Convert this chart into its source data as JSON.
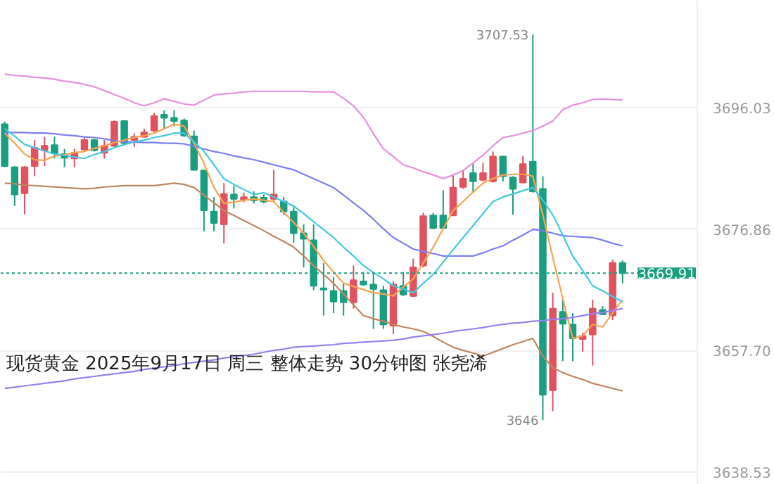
{
  "chart_data": {
    "type": "candlestick",
    "categories": [
      null,
      null,
      null,
      null,
      null,
      null,
      null,
      null,
      null,
      null,
      null,
      null,
      null,
      null,
      null,
      null,
      null,
      null,
      null,
      null,
      null,
      null,
      null,
      null,
      null,
      null,
      null,
      null,
      null,
      null,
      null,
      null,
      null,
      null,
      null,
      null,
      null,
      null,
      null,
      null,
      null,
      null,
      null,
      null,
      null,
      null,
      null,
      null,
      null,
      null,
      null,
      null,
      null,
      null,
      null,
      null,
      null,
      null,
      null,
      null,
      null,
      null,
      null
    ],
    "ohlc": [
      [
        3693.4,
        3693.8,
        3686.6,
        3686.8
      ],
      [
        3686.6,
        3686.8,
        3680.5,
        3682.3
      ],
      [
        3682.5,
        3686.8,
        3679.2,
        3686.6
      ],
      [
        3686.8,
        3690.9,
        3685.2,
        3689.7
      ],
      [
        3689.3,
        3691.4,
        3686.8,
        3690.0
      ],
      [
        3690.1,
        3691.4,
        3688.0,
        3688.8
      ],
      [
        3688.7,
        3689.5,
        3686.6,
        3688.1
      ],
      [
        3688.0,
        3689.5,
        3686.6,
        3688.9
      ],
      [
        3689.4,
        3691.3,
        3689.1,
        3690.9
      ],
      [
        3690.9,
        3691.1,
        3689.1,
        3689.3
      ],
      [
        3688.9,
        3690.9,
        3688.0,
        3690.0
      ],
      [
        3690.0,
        3694.0,
        3689.8,
        3693.8
      ],
      [
        3693.9,
        3694.0,
        3690.0,
        3690.4
      ],
      [
        3690.9,
        3692.0,
        3689.8,
        3691.4
      ],
      [
        3691.4,
        3692.7,
        3691.3,
        3692.1
      ],
      [
        3692.4,
        3695.2,
        3692.1,
        3694.7
      ],
      [
        3694.9,
        3695.6,
        3692.7,
        3694.4
      ],
      [
        3694.4,
        3695.6,
        3693.1,
        3693.9
      ],
      [
        3694.0,
        3694.3,
        3691.4,
        3691.6
      ],
      [
        3691.5,
        3692.4,
        3686.1,
        3686.2
      ],
      [
        3686.1,
        3686.2,
        3676.5,
        3679.8
      ],
      [
        3679.6,
        3681.9,
        3676.5,
        3677.8
      ],
      [
        3677.6,
        3684.1,
        3674.6,
        3682.4
      ],
      [
        3682.3,
        3683.7,
        3680.1,
        3681.6
      ],
      [
        3681.5,
        3682.6,
        3681.1,
        3681.9
      ],
      [
        3681.9,
        3682.8,
        3680.9,
        3681.4
      ],
      [
        3681.8,
        3682.3,
        3680.9,
        3681.2
      ],
      [
        3681.6,
        3686.2,
        3681.2,
        3682.3
      ],
      [
        3681.2,
        3681.9,
        3679.1,
        3679.6
      ],
      [
        3679.6,
        3680.5,
        3674.7,
        3676.2
      ],
      [
        3676.2,
        3677.6,
        3670.8,
        3675.3
      ],
      [
        3675.1,
        3677.6,
        3667.2,
        3667.9
      ],
      [
        3667.5,
        3671.5,
        3663.2,
        3667.3
      ],
      [
        3667.1,
        3669.3,
        3663.6,
        3665.4
      ],
      [
        3667.1,
        3668.3,
        3663.2,
        3665.3
      ],
      [
        3665.3,
        3671.1,
        3664.3,
        3668.8
      ],
      [
        3668.6,
        3670.1,
        3667.9,
        3668.1
      ],
      [
        3668.1,
        3670.1,
        3661.1,
        3667.4
      ],
      [
        3667.2,
        3667.9,
        3661.1,
        3661.8
      ],
      [
        3661.6,
        3668.6,
        3660.3,
        3668.1
      ],
      [
        3667.9,
        3670.1,
        3666.3,
        3666.5
      ],
      [
        3666.3,
        3672.2,
        3666.1,
        3670.8
      ],
      [
        3671.1,
        3679.4,
        3670.8,
        3678.9
      ],
      [
        3679.0,
        3679.4,
        3676.9,
        3677.0
      ],
      [
        3679.0,
        3683.0,
        3676.9,
        3677.0
      ],
      [
        3679.0,
        3685.5,
        3678.9,
        3683.4
      ],
      [
        3683.5,
        3686.2,
        3683.2,
        3684.8
      ],
      [
        3685.7,
        3687.3,
        3682.6,
        3684.4
      ],
      [
        3684.6,
        3687.3,
        3684.4,
        3685.7
      ],
      [
        3684.4,
        3689.1,
        3684.2,
        3688.3
      ],
      [
        3688.3,
        3688.4,
        3684.4,
        3685.2
      ],
      [
        3685.0,
        3685.2,
        3679.1,
        3683.2
      ],
      [
        3684.2,
        3688.4,
        3684.1,
        3687.1
      ],
      [
        3687.5,
        3707.53,
        3682.6,
        3682.8
      ],
      [
        3683.2,
        3685.2,
        3646.7,
        3650.7
      ],
      [
        3651.4,
        3666.8,
        3648.1,
        3664.3
      ],
      [
        3663.8,
        3665.7,
        3656.0,
        3661.9
      ],
      [
        3661.8,
        3663.6,
        3656.0,
        3659.6
      ],
      [
        3659.5,
        3660.5,
        3657.5,
        3660.0
      ],
      [
        3660.2,
        3665.7,
        3655.3,
        3664.3
      ],
      [
        3664.1,
        3664.7,
        3663.3,
        3663.4
      ],
      [
        3663.2,
        3672.0,
        3662.5,
        3671.5
      ],
      [
        3671.5,
        3671.9,
        3668.3,
        3669.91
      ]
    ],
    "colors": [
      "#1a9e80",
      "#1a9e80",
      "#e0525f",
      "#e0525f",
      "#e0525f",
      "#1a9e80",
      "#1a9e80",
      "#e0525f",
      "#e0525f",
      "#1a9e80",
      "#e0525f",
      "#e0525f",
      "#1a9e80",
      "#e0525f",
      "#e0525f",
      "#e0525f",
      "#1a9e80",
      "#1a9e80",
      "#1a9e80",
      "#1a9e80",
      "#1a9e80",
      "#1a9e80",
      "#e0525f",
      "#1a9e80",
      "#e0525f",
      "#1a9e80",
      "#1a9e80",
      "#e0525f",
      "#1a9e80",
      "#1a9e80",
      "#1a9e80",
      "#1a9e80",
      "#1a9e80",
      "#1a9e80",
      "#1a9e80",
      "#e0525f",
      "#1a9e80",
      "#1a9e80",
      "#1a9e80",
      "#e0525f",
      "#1a9e80",
      "#e0525f",
      "#e0525f",
      "#1a9e80",
      "#1a9e80",
      "#e0525f",
      "#e0525f",
      "#1a9e80",
      "#e0525f",
      "#e0525f",
      "#1a9e80",
      "#1a9e80",
      "#e0525f",
      "#1a9e80",
      "#1a9e80",
      "#e0525f",
      "#1a9e80",
      "#1a9e80",
      "#e0525f",
      "#e0525f",
      "#1a9e80",
      "#e0525f",
      "#1a9e80"
    ],
    "series": [
      {
        "type": "line",
        "color": "#e68fdc",
        "values": [
          3701.3,
          3701.1,
          3701.0,
          3700.8,
          3700.7,
          3700.5,
          3700.2,
          3700.0,
          3699.7,
          3699.3,
          3698.7,
          3698.1,
          3697.5,
          3696.8,
          3696.3,
          3696.8,
          3697.4,
          3697.0,
          3696.6,
          3696.4,
          3697.2,
          3698.0,
          3698.2,
          3698.3,
          3698.5,
          3698.6,
          3698.6,
          3698.6,
          3698.6,
          3698.6,
          3698.6,
          3698.5,
          3698.5,
          3698.5,
          3697.5,
          3696.3,
          3694.5,
          3691.9,
          3689.5,
          3688.3,
          3687.0,
          3686.5,
          3685.9,
          3685.4,
          3684.8,
          3685.4,
          3686.1,
          3687.3,
          3688.5,
          3690.0,
          3691.3,
          3691.6,
          3692.0,
          3692.4,
          3693.1,
          3693.9,
          3695.7,
          3696.4,
          3696.8,
          3697.3,
          3697.4,
          3697.3,
          3697.2
        ]
      },
      {
        "type": "line",
        "color": "#7b7ff0",
        "values": [
          3692.1,
          3692.1,
          3692.1,
          3692.0,
          3692.0,
          3691.9,
          3691.7,
          3691.6,
          3691.4,
          3691.3,
          3691.1,
          3690.8,
          3690.6,
          3690.6,
          3690.5,
          3690.5,
          3690.4,
          3690.4,
          3690.3,
          3689.9,
          3689.5,
          3689.1,
          3688.8,
          3688.4,
          3688.1,
          3687.8,
          3687.4,
          3687.0,
          3686.6,
          3686.2,
          3685.5,
          3684.8,
          3684.1,
          3683.4,
          3682.2,
          3681.0,
          3679.8,
          3678.4,
          3676.9,
          3675.5,
          3674.6,
          3673.7,
          3673.3,
          3673.0,
          3672.6,
          3672.6,
          3672.6,
          3672.6,
          3673.1,
          3673.7,
          3674.2,
          3675.1,
          3675.9,
          3676.8,
          3676.6,
          3676.2,
          3675.8,
          3675.7,
          3675.6,
          3675.5,
          3675.1,
          3674.6,
          3674.2
        ]
      },
      {
        "type": "line",
        "color": "#c08660",
        "values": [
          3684.1,
          3684.0,
          3683.8,
          3683.7,
          3683.6,
          3683.5,
          3683.4,
          3683.3,
          3683.2,
          3683.3,
          3683.5,
          3683.6,
          3683.7,
          3683.7,
          3683.7,
          3683.7,
          3683.9,
          3684.1,
          3683.9,
          3683.4,
          3682.2,
          3681.0,
          3679.8,
          3679.0,
          3678.2,
          3677.4,
          3676.6,
          3675.7,
          3674.9,
          3674.0,
          3672.6,
          3671.1,
          3669.7,
          3668.3,
          3666.6,
          3664.9,
          3663.2,
          3662.7,
          3662.3,
          3661.8,
          3661.4,
          3661.1,
          3660.7,
          3659.9,
          3659.0,
          3658.2,
          3657.7,
          3657.3,
          3656.8,
          3657.4,
          3658.0,
          3658.6,
          3659.1,
          3659.6,
          3656.8,
          3655.0,
          3654.2,
          3653.6,
          3653.1,
          3652.5,
          3652.1,
          3651.7,
          3651.3
        ]
      },
      {
        "type": "line",
        "color": "#f7a34f",
        "values": [
          3692.0,
          3690.4,
          3688.7,
          3687.8,
          3687.7,
          3688.4,
          3688.6,
          3688.9,
          3689.1,
          3689.6,
          3690.0,
          3690.5,
          3690.9,
          3691.3,
          3691.6,
          3692.0,
          3692.7,
          3693.4,
          3693.1,
          3690.4,
          3687.2,
          3683.4,
          3680.9,
          3681.1,
          3681.4,
          3681.6,
          3681.4,
          3681.2,
          3679.5,
          3677.9,
          3676.2,
          3674.1,
          3671.9,
          3670.1,
          3668.3,
          3667.8,
          3667.3,
          3666.8,
          3666.6,
          3666.3,
          3667.7,
          3669.0,
          3671.5,
          3674.0,
          3676.9,
          3679.8,
          3681.2,
          3682.7,
          3684.1,
          3684.8,
          3685.4,
          3685.5,
          3685.5,
          3685.2,
          3679.1,
          3672.4,
          3665.9,
          3659.6,
          3660.0,
          3661.8,
          3661.4,
          3663.6,
          3665.7
        ]
      },
      {
        "type": "line",
        "color": "#44c7e0",
        "values": [
          3692.7,
          3691.5,
          3690.2,
          3689.7,
          3689.2,
          3688.7,
          3688.5,
          3688.2,
          3688.0,
          3688.6,
          3689.1,
          3689.7,
          3690.2,
          3690.6,
          3690.9,
          3691.3,
          3691.6,
          3692.0,
          3692.0,
          3690.6,
          3689.1,
          3687.0,
          3684.8,
          3683.9,
          3683.1,
          3682.3,
          3682.6,
          3681.9,
          3681.2,
          3680.5,
          3679.3,
          3678.0,
          3676.8,
          3675.5,
          3674.0,
          3672.6,
          3671.1,
          3670.0,
          3669.0,
          3667.9,
          3667.4,
          3666.8,
          3668.3,
          3669.7,
          3671.6,
          3673.6,
          3675.5,
          3677.4,
          3679.3,
          3681.2,
          3681.9,
          3682.4,
          3682.9,
          3683.4,
          3681.4,
          3679.1,
          3675.9,
          3672.6,
          3670.3,
          3667.9,
          3667.1,
          3666.2,
          3665.4
        ]
      },
      {
        "type": "line",
        "color": "#9a7ff0",
        "values": [
          3651.7,
          3651.9,
          3652.1,
          3652.3,
          3652.5,
          3652.7,
          3652.9,
          3653.2,
          3653.4,
          3653.6,
          3653.8,
          3654.0,
          3654.2,
          3654.4,
          3654.7,
          3654.9,
          3655.1,
          3655.3,
          3655.6,
          3655.8,
          3656.0,
          3656.2,
          3656.5,
          3656.7,
          3656.9,
          3657.1,
          3657.4,
          3657.7,
          3657.9,
          3658.2,
          3658.3,
          3658.4,
          3658.5,
          3658.6,
          3658.8,
          3658.9,
          3659.0,
          3659.1,
          3659.2,
          3659.3,
          3659.5,
          3659.8,
          3660.0,
          3660.2,
          3660.4,
          3660.7,
          3660.9,
          3661.1,
          3661.3,
          3661.6,
          3661.8,
          3662.0,
          3662.1,
          3662.3,
          3662.4,
          3662.6,
          3662.7,
          3662.9,
          3663.2,
          3663.5,
          3663.7,
          3664.0,
          3664.3
        ]
      }
    ],
    "ylim": [
      3636.5,
      3712.9
    ],
    "yticks": [
      {
        "value": 3638.53,
        "label": "3638.53"
      },
      {
        "value": 3657.7,
        "label": "3657.70"
      },
      {
        "value": 3676.86,
        "label": "3676.86"
      },
      {
        "value": 3696.03,
        "label": "3696.03"
      }
    ],
    "tick_labels": "y",
    "grid": "y",
    "ref_lines": [
      {
        "axis": "y",
        "value": 3669.91,
        "label": "3669.91",
        "color": "#1a9e80",
        "line_style": "dotted"
      }
    ],
    "annotations": [
      "现货黄金 2025年9月17日 周三 整体走势 30分钟图 张尧浠",
      "3707.53",
      "3646"
    ]
  }
}
